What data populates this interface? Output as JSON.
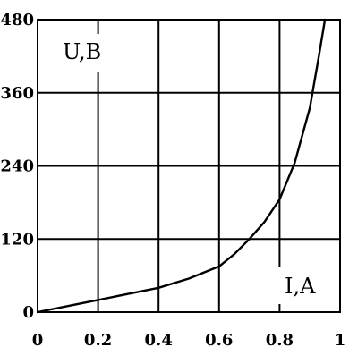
{
  "chart_data": {
    "type": "line",
    "xlabel": "I,A",
    "ylabel": "U,B",
    "xlim": [
      0,
      1
    ],
    "ylim": [
      0,
      480
    ],
    "x_ticks": [
      "0",
      "0.2",
      "0.4",
      "0.6",
      "0.8",
      "1"
    ],
    "y_ticks": [
      "0",
      "120",
      "240",
      "360",
      "480"
    ],
    "grid": true,
    "series": [
      {
        "x": [
          0,
          0.1,
          0.2,
          0.3,
          0.4,
          0.5,
          0.6,
          0.65,
          0.7,
          0.75,
          0.8,
          0.85,
          0.9,
          0.93,
          0.95
        ],
        "values": [
          0,
          10,
          20,
          30,
          40,
          55,
          75,
          95,
          120,
          148,
          185,
          245,
          335,
          420,
          480
        ]
      }
    ],
    "colors": {
      "line": "#000000",
      "grid": "#000000",
      "background": "#ffffff"
    }
  }
}
